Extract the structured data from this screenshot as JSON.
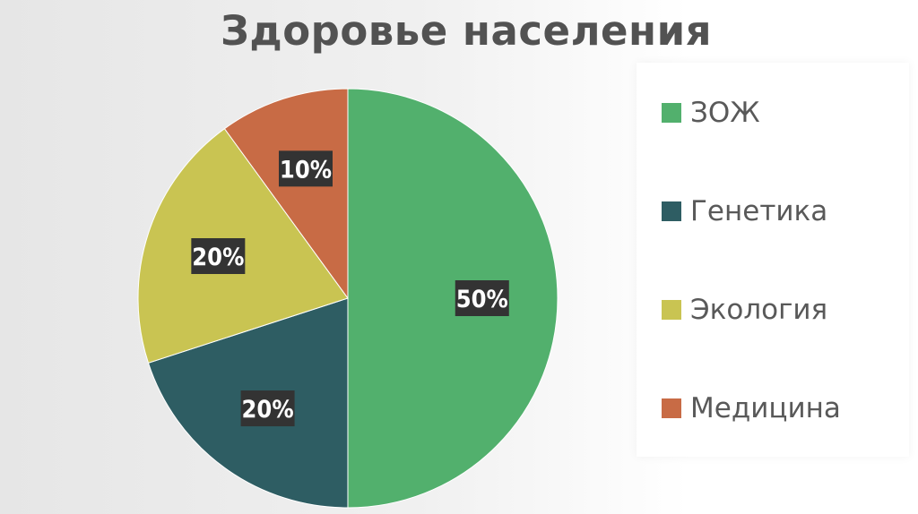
{
  "page": {
    "title": "Здоровье населения"
  },
  "chart_data": {
    "type": "pie",
    "title": "Здоровье населения",
    "categories": [
      "ЗОЖ",
      "Генетика",
      "Экология",
      "Медицина"
    ],
    "values": [
      50,
      20,
      20,
      10
    ],
    "data_labels": [
      "50%",
      "20%",
      "20%",
      "10%"
    ],
    "colors": [
      "#52b06d",
      "#2e5d63",
      "#c9c452",
      "#c86b45"
    ],
    "start_angle_deg": 0,
    "direction": "clockwise",
    "legend_position": "right"
  }
}
